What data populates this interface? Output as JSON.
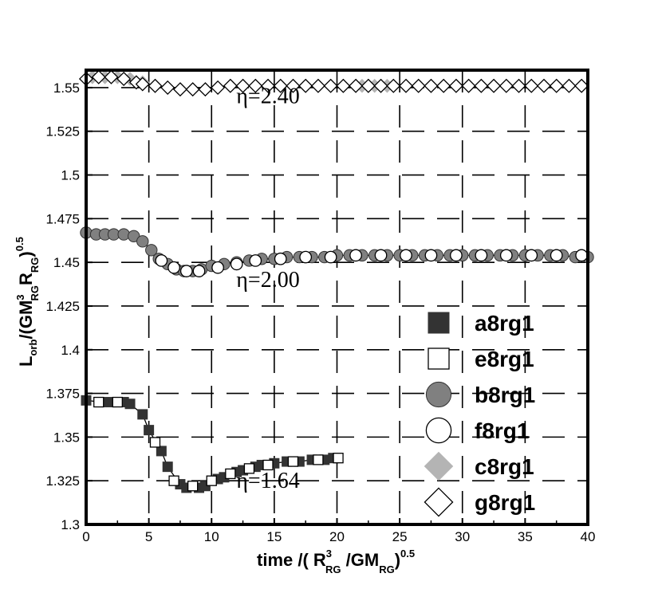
{
  "chart_data": {
    "type": "scatter",
    "xlabel": {
      "prefix": "time /( R",
      "sup": "3",
      "sub1": "RG",
      "mid": " /GM",
      "sub2": "RG",
      "suffix": ")",
      "power": "0.5"
    },
    "ylabel": {
      "prefix": "L",
      "sub1": "orb",
      "mid1": "/(GM",
      "sup": "3",
      "sub2": "RG",
      "mid2": "R",
      "sub3": "RG",
      "suffix": ")",
      "power": "0.5"
    },
    "xlim": [
      0,
      40
    ],
    "ylim": [
      1.3,
      1.56
    ],
    "x_ticks": [
      0,
      5,
      10,
      15,
      20,
      25,
      30,
      35,
      40
    ],
    "y_ticks": [
      1.3,
      1.325,
      1.35,
      1.375,
      1.4,
      1.425,
      1.45,
      1.475,
      1.5,
      1.525,
      1.55
    ],
    "x_tick_labels": [
      "0",
      "5",
      "10",
      "15",
      "20",
      "25",
      "30",
      "35",
      "40"
    ],
    "y_tick_labels": [
      "1.3",
      "1.325",
      "1.35",
      "1.375",
      "1.4",
      "1.425",
      "1.45",
      "1.475",
      "1.5",
      "1.525",
      "1.55"
    ],
    "grid": true,
    "legend_placement": "lower-right",
    "annotations": [
      {
        "text": "η=2.40",
        "x": 14.5,
        "y": 1.541
      },
      {
        "text": "η=2.00",
        "x": 14.5,
        "y": 1.436
      },
      {
        "text": "η=1.64",
        "x": 14.5,
        "y": 1.321
      }
    ],
    "series": [
      {
        "name": "a8rg1",
        "marker": "square-filled",
        "color": "#333333",
        "line": true,
        "x": [
          0,
          1.2,
          2.0,
          3.0,
          3.5,
          4.5,
          5.0,
          6.0,
          6.5,
          7.5,
          8.0,
          9.0,
          9.5,
          10.5,
          11.0,
          12.0,
          12.5,
          13.5,
          14.0,
          15.0,
          16.0,
          17.0,
          18.0,
          19.0,
          19.7
        ],
        "y": [
          1.371,
          1.37,
          1.37,
          1.37,
          1.369,
          1.363,
          1.354,
          1.342,
          1.333,
          1.323,
          1.321,
          1.321,
          1.322,
          1.326,
          1.327,
          1.33,
          1.331,
          1.333,
          1.334,
          1.335,
          1.336,
          1.336,
          1.337,
          1.337,
          1.338
        ]
      },
      {
        "name": "e8rg1",
        "marker": "square-open",
        "color": "#000000",
        "line": false,
        "x": [
          1.0,
          2.5,
          5.5,
          7.0,
          8.5,
          10.0,
          11.5,
          13.0,
          14.5,
          16.5,
          18.5,
          20.1
        ],
        "y": [
          1.37,
          1.37,
          1.347,
          1.325,
          1.322,
          1.325,
          1.329,
          1.332,
          1.334,
          1.336,
          1.337,
          1.338
        ]
      },
      {
        "name": "b8rg1",
        "marker": "circle-filled",
        "color": "#808080",
        "line": true,
        "x": [
          0,
          0.8,
          1.5,
          2.2,
          3.0,
          3.8,
          4.5,
          5.2,
          5.8,
          6.5,
          7.2,
          7.8,
          8.5,
          9.2,
          10.0,
          11.0,
          12.0,
          13.0,
          14.0,
          15.0,
          16.0,
          17.0,
          18.0,
          19.0,
          20.0,
          21.0,
          22.0,
          23.0,
          24.0,
          25.0,
          26.0,
          27.0,
          28.0,
          29.0,
          30.0,
          31.0,
          32.0,
          33.0,
          34.0,
          35.0,
          36.0,
          37.0,
          38.0,
          39.0,
          40.0
        ],
        "y": [
          1.467,
          1.466,
          1.466,
          1.466,
          1.466,
          1.465,
          1.462,
          1.457,
          1.452,
          1.449,
          1.446,
          1.445,
          1.445,
          1.446,
          1.448,
          1.449,
          1.45,
          1.451,
          1.452,
          1.452,
          1.453,
          1.453,
          1.453,
          1.453,
          1.454,
          1.454,
          1.454,
          1.454,
          1.454,
          1.454,
          1.454,
          1.454,
          1.454,
          1.454,
          1.454,
          1.454,
          1.454,
          1.454,
          1.454,
          1.454,
          1.454,
          1.454,
          1.454,
          1.453,
          1.453
        ]
      },
      {
        "name": "f8rg1",
        "marker": "circle-open",
        "color": "#000000",
        "line": false,
        "x": [
          6.0,
          7.0,
          8.0,
          9.0,
          10.5,
          12.0,
          13.5,
          15.5,
          17.5,
          19.5,
          21.5,
          23.5,
          25.5,
          27.5,
          29.5,
          31.5,
          33.5,
          35.5,
          37.5,
          39.5
        ],
        "y": [
          1.451,
          1.447,
          1.445,
          1.445,
          1.447,
          1.449,
          1.451,
          1.452,
          1.453,
          1.453,
          1.454,
          1.454,
          1.454,
          1.454,
          1.454,
          1.454,
          1.454,
          1.454,
          1.454,
          1.454
        ]
      },
      {
        "name": "c8rg1",
        "marker": "diamond-filled",
        "color": "#b4b4b4",
        "line": false,
        "x": [
          0.5,
          1.5,
          2.5,
          3.5,
          4.5,
          22.0,
          23.0,
          24.0,
          29.5,
          30.5
        ],
        "y": [
          1.556,
          1.556,
          1.556,
          1.555,
          1.553,
          1.551,
          1.551,
          1.551,
          1.551,
          1.551
        ]
      },
      {
        "name": "g8rg1",
        "marker": "diamond-open",
        "color": "#000000",
        "line": true,
        "x": [
          0,
          1.0,
          2.0,
          3.0,
          4.0,
          4.5,
          5.5,
          6.5,
          7.5,
          8.5,
          9.5,
          10.5,
          11.5,
          12.5,
          13.5,
          14.5,
          15.5,
          16.5,
          17.5,
          18.5,
          19.5,
          20.5,
          21.5,
          22.5,
          23.5,
          24.5,
          25.5,
          26.5,
          27.5,
          28.5,
          29.5,
          30.5,
          31.5,
          32.5,
          33.5,
          34.5,
          35.5,
          36.5,
          37.5,
          38.5,
          39.5
        ],
        "y": [
          1.555,
          1.556,
          1.556,
          1.555,
          1.553,
          1.552,
          1.551,
          1.55,
          1.549,
          1.549,
          1.549,
          1.55,
          1.551,
          1.551,
          1.551,
          1.551,
          1.551,
          1.551,
          1.551,
          1.551,
          1.551,
          1.551,
          1.551,
          1.551,
          1.551,
          1.551,
          1.551,
          1.551,
          1.551,
          1.551,
          1.551,
          1.551,
          1.551,
          1.551,
          1.551,
          1.551,
          1.551,
          1.551,
          1.551,
          1.551,
          1.551
        ]
      }
    ]
  }
}
